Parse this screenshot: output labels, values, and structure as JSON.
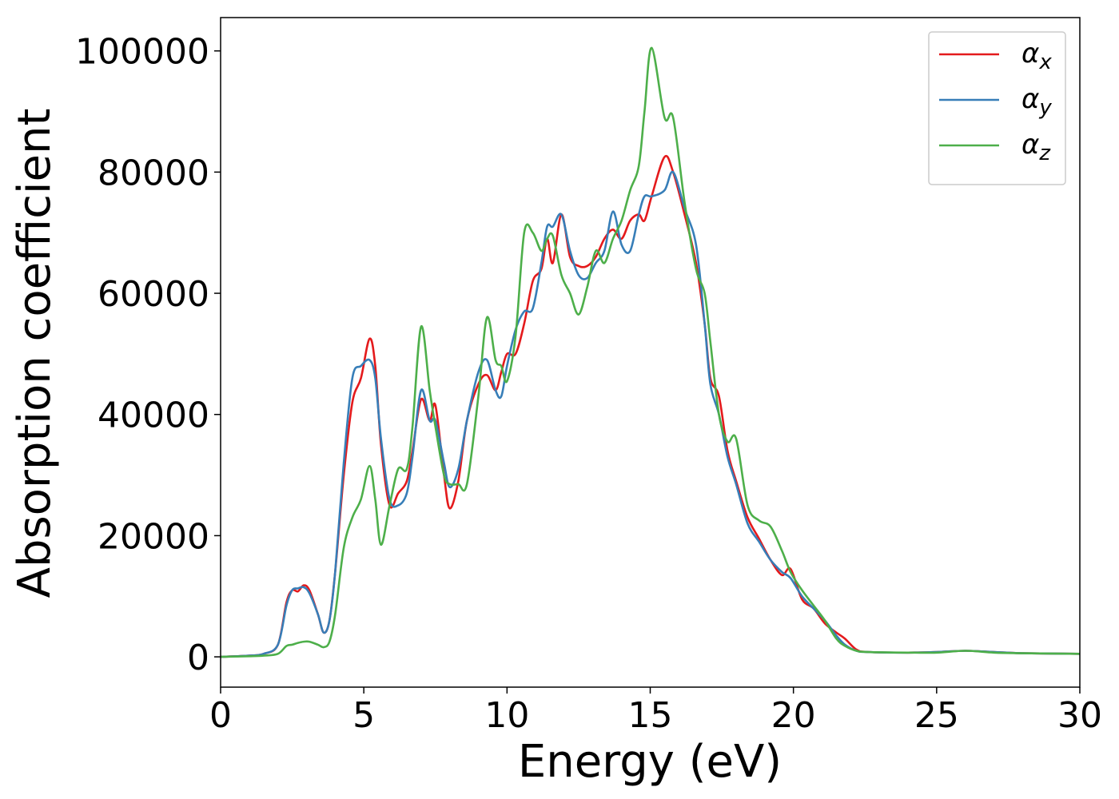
{
  "chart_data": {
    "type": "line",
    "x_label": "Energy (eV)",
    "y_label": "Absorption coefficient",
    "x": [
      0,
      1,
      1.5,
      2,
      2.3,
      2.5,
      2.7,
      2.9,
      3.1,
      3.4,
      3.6,
      3.8,
      4.0,
      4.3,
      4.6,
      4.9,
      5.2,
      5.4,
      5.6,
      5.9,
      6.2,
      6.5,
      6.7,
      7.0,
      7.3,
      7.5,
      7.8,
      8.0,
      8.3,
      8.6,
      9.0,
      9.3,
      9.6,
      9.8,
      10.0,
      10.3,
      10.6,
      10.9,
      11.2,
      11.4,
      11.6,
      11.9,
      12.2,
      12.5,
      12.8,
      13.1,
      13.4,
      13.7,
      14.0,
      14.3,
      14.6,
      14.8,
      15.05,
      15.5,
      15.8,
      16.2,
      16.6,
      16.9,
      17.1,
      17.4,
      17.7,
      18.0,
      18.4,
      18.8,
      19.2,
      19.6,
      19.9,
      20.3,
      20.7,
      21.1,
      21.5,
      21.8,
      22.2,
      22.6,
      24,
      25,
      26,
      27,
      28,
      30
    ],
    "series": [
      {
        "name": "αx",
        "color": "#e41a1c",
        "values": [
          0,
          200,
          500,
          2000,
          9000,
          11000,
          10800,
          11800,
          11000,
          7000,
          4000,
          6000,
          14000,
          30000,
          42000,
          46000,
          52500,
          48000,
          35000,
          25000,
          27000,
          29000,
          34000,
          42500,
          39000,
          41500,
          30000,
          24500,
          29000,
          39000,
          45000,
          46500,
          44000,
          47000,
          50000,
          50000,
          55000,
          62000,
          64000,
          69000,
          65000,
          73000,
          66000,
          64500,
          64500,
          66000,
          69000,
          70500,
          69000,
          72000,
          73000,
          72000,
          76000,
          82500,
          80000,
          73000,
          65000,
          55000,
          46000,
          43000,
          34000,
          29000,
          23000,
          19500,
          16000,
          13500,
          14500,
          9500,
          8000,
          5500,
          4000,
          3000,
          1200,
          800,
          700,
          800,
          1000,
          800,
          600,
          500
        ]
      },
      {
        "name": "αy",
        "color": "#377eb8",
        "values": [
          0,
          200,
          500,
          2000,
          8500,
          11000,
          11300,
          11500,
          10500,
          7000,
          4000,
          6000,
          14000,
          32000,
          46000,
          48000,
          49000,
          46000,
          36000,
          26000,
          25000,
          27000,
          33000,
          44000,
          39000,
          39000,
          32000,
          28000,
          31000,
          39000,
          47000,
          49000,
          44000,
          43000,
          48000,
          54000,
          57000,
          57500,
          65000,
          71000,
          71000,
          73000,
          67000,
          63000,
          62500,
          65000,
          67000,
          73500,
          68000,
          67000,
          73000,
          76000,
          76000,
          77000,
          80000,
          74000,
          68000,
          55000,
          45000,
          40000,
          33000,
          28500,
          22000,
          19000,
          16000,
          14000,
          13000,
          10000,
          8000,
          6000,
          3500,
          2000,
          1000,
          800,
          700,
          800,
          1000,
          800,
          600,
          500
        ]
      },
      {
        "name": "αz",
        "color": "#4daf4a",
        "values": [
          0,
          100,
          200,
          500,
          1800,
          2000,
          2300,
          2500,
          2500,
          2000,
          1600,
          2500,
          7000,
          18000,
          23000,
          26000,
          31500,
          26000,
          18500,
          25000,
          31000,
          31000,
          38000,
          54500,
          44000,
          38000,
          30000,
          28500,
          28500,
          28500,
          43000,
          56000,
          49000,
          48000,
          45500,
          53000,
          70000,
          70000,
          67000,
          69000,
          69500,
          63000,
          60000,
          56500,
          61000,
          67000,
          65000,
          69000,
          72000,
          77000,
          81000,
          90000,
          100500,
          89000,
          89000,
          75000,
          64000,
          60000,
          52000,
          40000,
          35500,
          36000,
          25000,
          22500,
          21500,
          17500,
          14000,
          11000,
          8500,
          6000,
          3000,
          1800,
          1000,
          800,
          700,
          700,
          1000,
          700,
          600,
          500
        ]
      }
    ],
    "xlim": [
      0,
      30
    ],
    "xticks": [
      0,
      5,
      10,
      15,
      20,
      25,
      30
    ],
    "ylim": [
      -5000,
      105500
    ],
    "yticks": [
      0,
      20000,
      40000,
      60000,
      80000,
      100000
    ],
    "grid": false,
    "legend": "upper right"
  }
}
